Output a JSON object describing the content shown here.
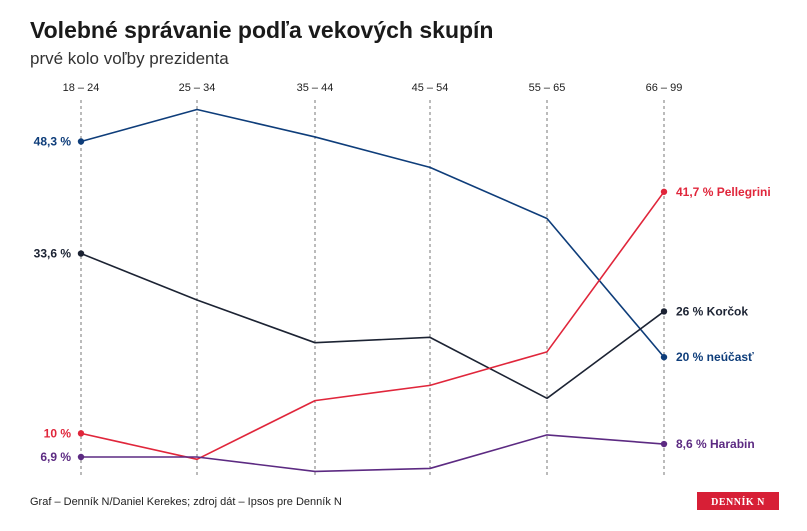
{
  "chart_data": {
    "type": "line",
    "title": "Volebné správanie podľa vekových skupín",
    "subtitle": "prvé kolo voľby prezidenta",
    "categories": [
      "18 – 24",
      "25 – 34",
      "35 – 44",
      "45 – 54",
      "55 – 65",
      "66 – 99"
    ],
    "ylim": [
      0,
      52
    ],
    "grid": "vertical-dashed",
    "series": [
      {
        "name": "neúčasť",
        "color": "#0e3d7a",
        "values": [
          48.3,
          52.5,
          48.9,
          44.9,
          38.2,
          20
        ],
        "start_label": "48,3 %",
        "end_label": "20 % neúčasť"
      },
      {
        "name": "Korčok",
        "color": "#1c2333",
        "values": [
          33.6,
          27.5,
          21.9,
          22.6,
          14.6,
          26
        ],
        "start_label": "33,6 %",
        "end_label": "26 % Korčok"
      },
      {
        "name": "Pellegrini",
        "color": "#e0263b",
        "values": [
          10,
          6.6,
          14.3,
          16.3,
          20.7,
          41.7
        ],
        "start_label": "10 %",
        "end_label": "41,7 % Pellegrini"
      },
      {
        "name": "Harabin",
        "color": "#5c2a82",
        "values": [
          6.9,
          6.9,
          5,
          5.4,
          9.8,
          8.6
        ],
        "start_label": "6,9 %",
        "end_label": "8,6 % Harabin"
      }
    ]
  },
  "footer": {
    "source": "Graf – Denník N/Daniel Kerekes; zdroj dát – Ipsos pre Denník N",
    "logo_text": "DENNÍK N"
  }
}
